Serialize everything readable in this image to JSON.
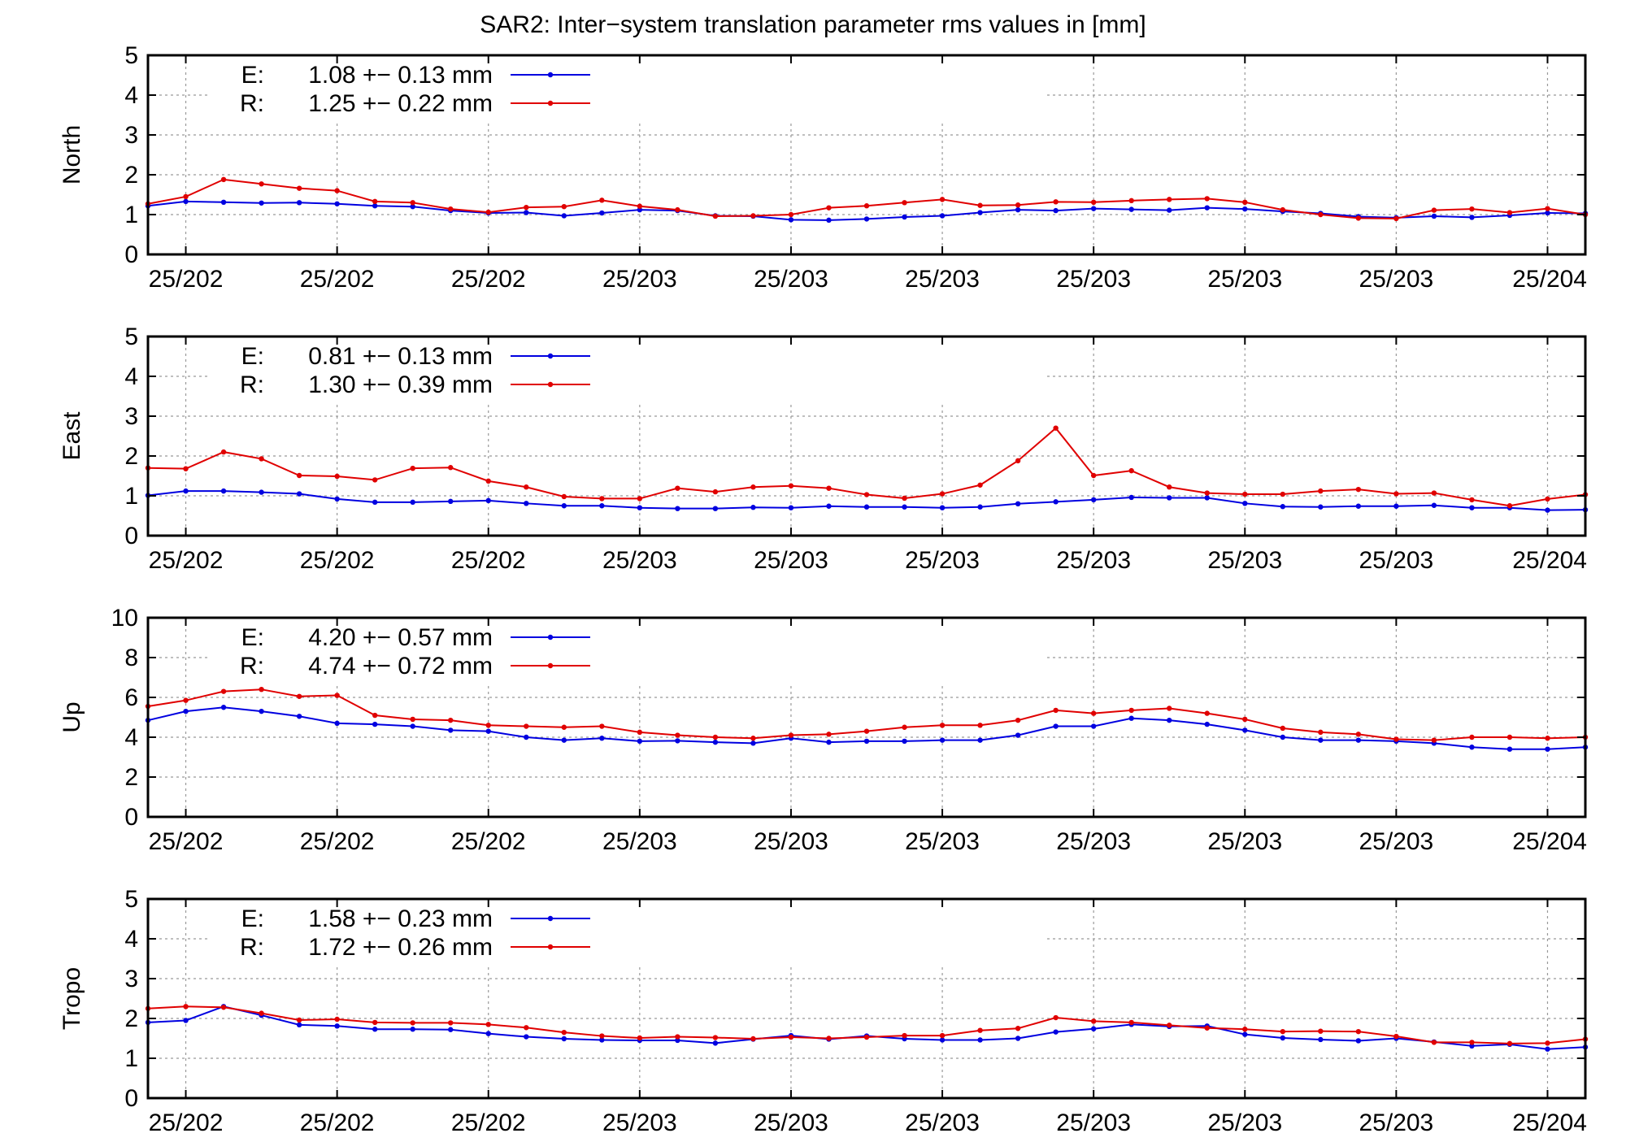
{
  "title": "SAR2: Inter−system translation parameter rms values in [mm]",
  "colors": {
    "E": "#0000e0",
    "R": "#e00000",
    "grid": "#999999",
    "axis": "#000000"
  },
  "chart_data": [
    {
      "type": "line",
      "ylabel": "North",
      "ylim": [
        0,
        5
      ],
      "yticks": [
        0,
        1,
        2,
        3,
        4,
        5
      ],
      "grid": true,
      "legend_position": "top-left",
      "xlim": [
        0,
        38
      ],
      "xtick_positions": [
        1,
        5,
        9,
        13,
        17,
        21,
        25,
        29,
        33,
        37
      ],
      "xtick_labels": [
        "25/202",
        "25/202",
        "25/202",
        "25/203",
        "25/203",
        "25/203",
        "25/203",
        "25/203",
        "25/203",
        "25/204"
      ],
      "legend": [
        {
          "key": "E:",
          "text": "1.08 +− 0.13 mm"
        },
        {
          "key": "R:",
          "text": "1.25 +− 0.22 mm"
        }
      ],
      "series": [
        {
          "name": "E",
          "values": [
            1.22,
            1.33,
            1.31,
            1.29,
            1.3,
            1.27,
            1.22,
            1.2,
            1.1,
            1.04,
            1.05,
            0.97,
            1.04,
            1.12,
            1.1,
            0.97,
            0.96,
            0.87,
            0.86,
            0.89,
            0.94,
            0.97,
            1.05,
            1.12,
            1.1,
            1.15,
            1.13,
            1.11,
            1.17,
            1.14,
            1.08,
            1.03,
            0.95,
            0.92,
            0.96,
            0.93,
            0.98,
            1.04,
            1.03
          ]
        },
        {
          "name": "R",
          "values": [
            1.27,
            1.45,
            1.88,
            1.77,
            1.66,
            1.6,
            1.33,
            1.3,
            1.14,
            1.06,
            1.18,
            1.2,
            1.36,
            1.21,
            1.12,
            0.96,
            0.97,
            1.0,
            1.17,
            1.22,
            1.3,
            1.38,
            1.23,
            1.24,
            1.32,
            1.31,
            1.35,
            1.38,
            1.4,
            1.31,
            1.12,
            1.0,
            0.91,
            0.9,
            1.11,
            1.14,
            1.05,
            1.15,
            1.0
          ]
        }
      ]
    },
    {
      "type": "line",
      "ylabel": "East",
      "ylim": [
        0,
        5
      ],
      "yticks": [
        0,
        1,
        2,
        3,
        4,
        5
      ],
      "grid": true,
      "legend_position": "top-left",
      "xlim": [
        0,
        38
      ],
      "xtick_positions": [
        1,
        5,
        9,
        13,
        17,
        21,
        25,
        29,
        33,
        37
      ],
      "xtick_labels": [
        "25/202",
        "25/202",
        "25/202",
        "25/203",
        "25/203",
        "25/203",
        "25/203",
        "25/203",
        "25/203",
        "25/204"
      ],
      "legend": [
        {
          "key": "E:",
          "text": "0.81 +− 0.13 mm"
        },
        {
          "key": "R:",
          "text": "1.30 +− 0.39 mm"
        }
      ],
      "series": [
        {
          "name": "E",
          "values": [
            1.01,
            1.12,
            1.12,
            1.09,
            1.05,
            0.92,
            0.84,
            0.84,
            0.86,
            0.88,
            0.81,
            0.75,
            0.75,
            0.7,
            0.68,
            0.68,
            0.71,
            0.7,
            0.74,
            0.72,
            0.72,
            0.7,
            0.72,
            0.8,
            0.85,
            0.9,
            0.96,
            0.95,
            0.95,
            0.81,
            0.73,
            0.72,
            0.74,
            0.74,
            0.76,
            0.7,
            0.7,
            0.64,
            0.65
          ]
        },
        {
          "name": "R",
          "values": [
            1.7,
            1.68,
            2.1,
            1.93,
            1.51,
            1.49,
            1.4,
            1.69,
            1.71,
            1.37,
            1.22,
            0.98,
            0.93,
            0.93,
            1.19,
            1.1,
            1.22,
            1.25,
            1.19,
            1.03,
            0.94,
            1.05,
            1.27,
            1.88,
            2.7,
            1.51,
            1.63,
            1.22,
            1.07,
            1.04,
            1.04,
            1.12,
            1.16,
            1.05,
            1.07,
            0.9,
            0.75,
            0.92,
            1.03
          ]
        }
      ]
    },
    {
      "type": "line",
      "ylabel": "Up",
      "ylim": [
        0,
        10
      ],
      "yticks": [
        0,
        2,
        4,
        6,
        8,
        10
      ],
      "grid": true,
      "legend_position": "top-left",
      "xlim": [
        0,
        38
      ],
      "xtick_positions": [
        1,
        5,
        9,
        13,
        17,
        21,
        25,
        29,
        33,
        37
      ],
      "xtick_labels": [
        "25/202",
        "25/202",
        "25/202",
        "25/203",
        "25/203",
        "25/203",
        "25/203",
        "25/203",
        "25/203",
        "25/204"
      ],
      "legend": [
        {
          "key": "E:",
          "text": "4.20 +− 0.57 mm"
        },
        {
          "key": "R:",
          "text": "4.74 +− 0.72 mm"
        }
      ],
      "series": [
        {
          "name": "E",
          "values": [
            4.85,
            5.3,
            5.5,
            5.3,
            5.05,
            4.7,
            4.65,
            4.55,
            4.35,
            4.3,
            4.0,
            3.85,
            3.95,
            3.8,
            3.82,
            3.75,
            3.7,
            3.95,
            3.75,
            3.8,
            3.8,
            3.85,
            3.85,
            4.1,
            4.55,
            4.55,
            4.95,
            4.85,
            4.65,
            4.35,
            4.0,
            3.85,
            3.85,
            3.8,
            3.7,
            3.5,
            3.4,
            3.4,
            3.5
          ]
        },
        {
          "name": "R",
          "values": [
            5.55,
            5.85,
            6.3,
            6.4,
            6.05,
            6.1,
            5.1,
            4.9,
            4.85,
            4.6,
            4.55,
            4.5,
            4.55,
            4.25,
            4.1,
            4.0,
            3.95,
            4.1,
            4.15,
            4.3,
            4.5,
            4.6,
            4.6,
            4.85,
            5.35,
            5.2,
            5.35,
            5.45,
            5.2,
            4.9,
            4.45,
            4.25,
            4.15,
            3.9,
            3.85,
            4.0,
            4.0,
            3.95,
            4.0
          ]
        }
      ]
    },
    {
      "type": "line",
      "ylabel": "Tropo",
      "ylim": [
        0,
        5
      ],
      "yticks": [
        0,
        1,
        2,
        3,
        4,
        5
      ],
      "grid": true,
      "legend_position": "top-left",
      "xlim": [
        0,
        38
      ],
      "xtick_positions": [
        1,
        5,
        9,
        13,
        17,
        21,
        25,
        29,
        33,
        37
      ],
      "xtick_labels": [
        "25/202",
        "25/202",
        "25/202",
        "25/203",
        "25/203",
        "25/203",
        "25/203",
        "25/203",
        "25/203",
        "25/204"
      ],
      "legend": [
        {
          "key": "E:",
          "text": "1.58 +− 0.23 mm"
        },
        {
          "key": "R:",
          "text": "1.72 +− 0.26 mm"
        }
      ],
      "series": [
        {
          "name": "E",
          "values": [
            1.9,
            1.95,
            2.3,
            2.08,
            1.84,
            1.81,
            1.73,
            1.73,
            1.72,
            1.62,
            1.54,
            1.49,
            1.46,
            1.45,
            1.45,
            1.38,
            1.48,
            1.57,
            1.48,
            1.56,
            1.49,
            1.46,
            1.46,
            1.5,
            1.66,
            1.74,
            1.85,
            1.8,
            1.81,
            1.6,
            1.51,
            1.47,
            1.44,
            1.5,
            1.41,
            1.31,
            1.35,
            1.23,
            1.28
          ]
        },
        {
          "name": "R",
          "values": [
            2.25,
            2.3,
            2.28,
            2.13,
            1.96,
            1.98,
            1.9,
            1.89,
            1.89,
            1.85,
            1.77,
            1.65,
            1.56,
            1.51,
            1.54,
            1.52,
            1.49,
            1.53,
            1.5,
            1.53,
            1.57,
            1.57,
            1.7,
            1.75,
            2.02,
            1.93,
            1.9,
            1.83,
            1.76,
            1.73,
            1.67,
            1.68,
            1.67,
            1.55,
            1.4,
            1.4,
            1.37,
            1.38,
            1.48
          ]
        }
      ]
    }
  ]
}
